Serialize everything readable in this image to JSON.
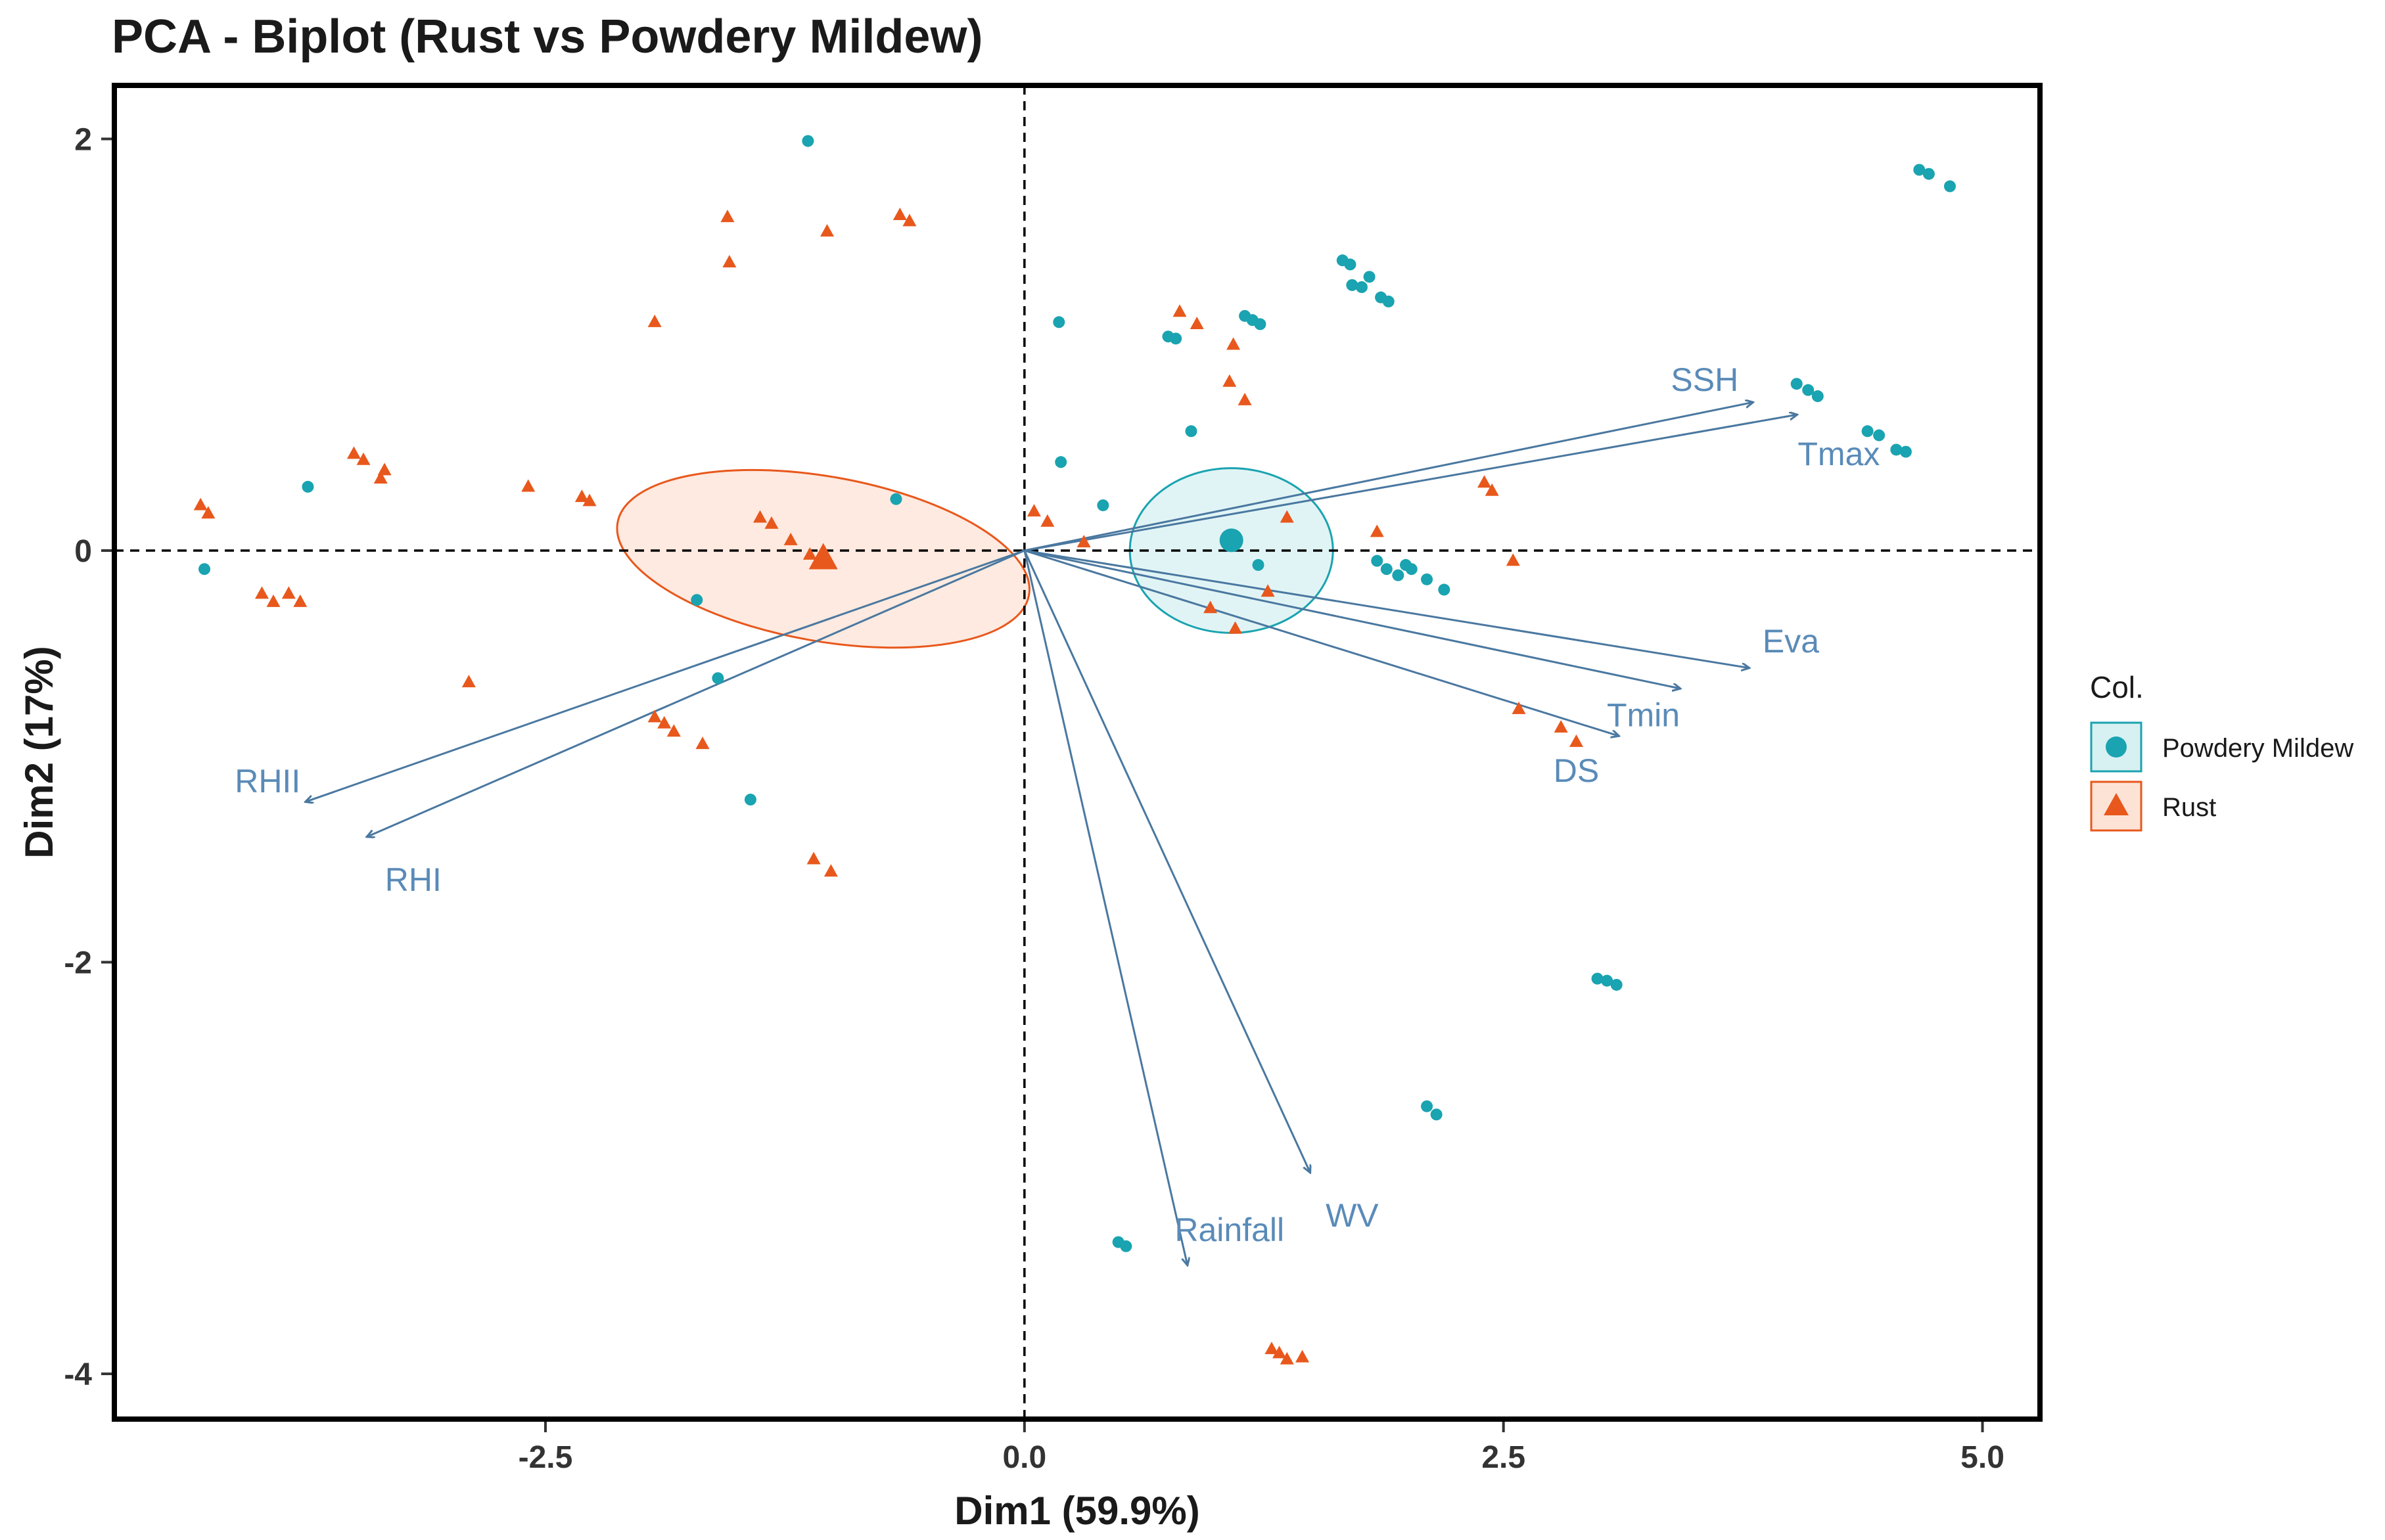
{
  "colors": {
    "powdery": "#1aa3b0",
    "rust": "#e8581c",
    "arrow": "#4a78a0",
    "arrow_label": "#5a8bb8"
  },
  "chart_data": {
    "type": "scatter",
    "title": "PCA - Biplot (Rust vs Powdery Mildew)",
    "xlabel": "Dim1 (59.9%)",
    "ylabel": "Dim2 (17%)",
    "xlim": [
      -4.75,
      5.3
    ],
    "ylim": [
      -4.22,
      2.26
    ],
    "xticks": [
      -2.5,
      0.0,
      2.5,
      5.0
    ],
    "xtick_labels": [
      "-2.5",
      "0.0",
      "2.5",
      "5.0"
    ],
    "yticks": [
      2,
      0,
      -2,
      -4
    ],
    "ytick_labels": [
      "2",
      "0",
      "-2",
      "-4"
    ],
    "reference_lines": {
      "x": 0,
      "y": 0,
      "style": "dashed"
    },
    "legend": {
      "title": "Col.",
      "position": "right",
      "entries": [
        {
          "label": "Powdery Mildew",
          "marker": "circle"
        },
        {
          "label": "Rust",
          "marker": "triangle"
        }
      ]
    },
    "series": [
      {
        "name": "Powdery Mildew",
        "marker": "circle",
        "centroid": [
          1.08,
          0.05
        ],
        "ellipse": {
          "center": [
            1.08,
            0.0
          ],
          "rx": 0.53,
          "ry": 0.4
        },
        "points": [
          [
            -1.13,
            1.99
          ],
          [
            0.18,
            1.11
          ],
          [
            -3.74,
            0.31
          ],
          [
            -4.28,
            -0.09
          ],
          [
            -0.67,
            0.25
          ],
          [
            -1.71,
            -0.24
          ],
          [
            -1.6,
            -0.62
          ],
          [
            -1.43,
            -1.21
          ],
          [
            0.19,
            0.43
          ],
          [
            0.41,
            0.22
          ],
          [
            0.75,
            1.04
          ],
          [
            0.79,
            1.03
          ],
          [
            0.87,
            0.58
          ],
          [
            1.15,
            1.14
          ],
          [
            1.19,
            1.12
          ],
          [
            1.23,
            1.1
          ],
          [
            1.66,
            1.41
          ],
          [
            1.7,
            1.39
          ],
          [
            1.71,
            1.29
          ],
          [
            1.76,
            1.28
          ],
          [
            1.8,
            1.33
          ],
          [
            1.86,
            1.23
          ],
          [
            1.9,
            1.21
          ],
          [
            1.22,
            -0.07
          ],
          [
            1.84,
            -0.05
          ],
          [
            1.89,
            -0.09
          ],
          [
            1.95,
            -0.12
          ],
          [
            1.99,
            -0.07
          ],
          [
            2.02,
            -0.09
          ],
          [
            2.1,
            -0.14
          ],
          [
            2.19,
            -0.19
          ],
          [
            4.03,
            0.81
          ],
          [
            4.09,
            0.78
          ],
          [
            4.14,
            0.75
          ],
          [
            4.4,
            0.58
          ],
          [
            4.46,
            0.56
          ],
          [
            4.55,
            0.49
          ],
          [
            4.6,
            0.48
          ],
          [
            4.67,
            1.85
          ],
          [
            4.72,
            1.83
          ],
          [
            4.83,
            1.77
          ],
          [
            2.99,
            -2.08
          ],
          [
            3.04,
            -2.09
          ],
          [
            3.09,
            -2.11
          ],
          [
            2.1,
            -2.7
          ],
          [
            2.15,
            -2.74
          ],
          [
            0.49,
            -3.36
          ],
          [
            0.53,
            -3.38
          ]
        ]
      },
      {
        "name": "Rust",
        "marker": "triangle",
        "centroid": [
          -1.05,
          -0.04
        ],
        "ellipse": {
          "center": [
            -1.05,
            -0.04
          ],
          "rx": 1.09,
          "ry": 0.4,
          "angle": -10
        },
        "points": [
          [
            -1.55,
            1.62
          ],
          [
            -1.54,
            1.4
          ],
          [
            -1.03,
            1.55
          ],
          [
            -0.65,
            1.63
          ],
          [
            -0.6,
            1.6
          ],
          [
            -1.93,
            1.11
          ],
          [
            -3.5,
            0.47
          ],
          [
            -3.45,
            0.44
          ],
          [
            -3.36,
            0.35
          ],
          [
            -3.34,
            0.39
          ],
          [
            -2.59,
            0.31
          ],
          [
            -2.31,
            0.26
          ],
          [
            -2.27,
            0.24
          ],
          [
            -4.3,
            0.22
          ],
          [
            -4.26,
            0.18
          ],
          [
            -3.98,
            -0.21
          ],
          [
            -3.92,
            -0.25
          ],
          [
            -3.84,
            -0.21
          ],
          [
            -3.78,
            -0.25
          ],
          [
            -2.9,
            -0.64
          ],
          [
            -1.93,
            -0.81
          ],
          [
            -1.88,
            -0.84
          ],
          [
            -1.83,
            -0.88
          ],
          [
            -1.68,
            -0.94
          ],
          [
            -1.38,
            0.16
          ],
          [
            -1.32,
            0.13
          ],
          [
            -1.22,
            0.05
          ],
          [
            -1.12,
            -0.02
          ],
          [
            -1.1,
            -1.5
          ],
          [
            -1.01,
            -1.56
          ],
          [
            0.05,
            0.19
          ],
          [
            0.12,
            0.14
          ],
          [
            0.31,
            0.04
          ],
          [
            0.81,
            1.16
          ],
          [
            0.9,
            1.1
          ],
          [
            1.09,
            1.0
          ],
          [
            1.15,
            0.73
          ],
          [
            1.07,
            0.82
          ],
          [
            0.97,
            -0.28
          ],
          [
            1.1,
            -0.38
          ],
          [
            1.27,
            -0.2
          ],
          [
            1.37,
            0.16
          ],
          [
            1.84,
            0.09
          ],
          [
            2.4,
            0.33
          ],
          [
            2.44,
            0.29
          ],
          [
            2.55,
            -0.05
          ],
          [
            2.58,
            -0.77
          ],
          [
            2.8,
            -0.86
          ],
          [
            2.88,
            -0.93
          ],
          [
            1.29,
            -3.88
          ],
          [
            1.33,
            -3.9
          ],
          [
            1.37,
            -3.93
          ],
          [
            1.45,
            -3.92
          ]
        ]
      }
    ],
    "variables": [
      {
        "name": "SSH",
        "x": 3.8,
        "y": 0.72,
        "label_x": 3.55,
        "label_y": 0.83
      },
      {
        "name": "Tmax",
        "x": 4.03,
        "y": 0.66,
        "label_x": 4.25,
        "label_y": 0.47
      },
      {
        "name": "Eva",
        "x": 3.78,
        "y": -0.57,
        "label_x": 4.0,
        "label_y": -0.44
      },
      {
        "name": "Tmin",
        "x": 3.42,
        "y": -0.67,
        "label_x": 3.23,
        "label_y": -0.8
      },
      {
        "name": "DS",
        "x": 3.1,
        "y": -0.9,
        "label_x": 2.88,
        "label_y": -1.07
      },
      {
        "name": "RHII",
        "x": -3.75,
        "y": -1.22,
        "label_x": -3.95,
        "label_y": -1.12
      },
      {
        "name": "RHI",
        "x": -3.43,
        "y": -1.39,
        "label_x": -3.19,
        "label_y": -1.6
      },
      {
        "name": "WV",
        "x": 1.49,
        "y": -3.02,
        "label_x": 1.71,
        "label_y": -3.23
      },
      {
        "name": "Rainfall",
        "x": 0.85,
        "y": -3.47,
        "label_x": 1.07,
        "label_y": -3.3
      }
    ]
  }
}
